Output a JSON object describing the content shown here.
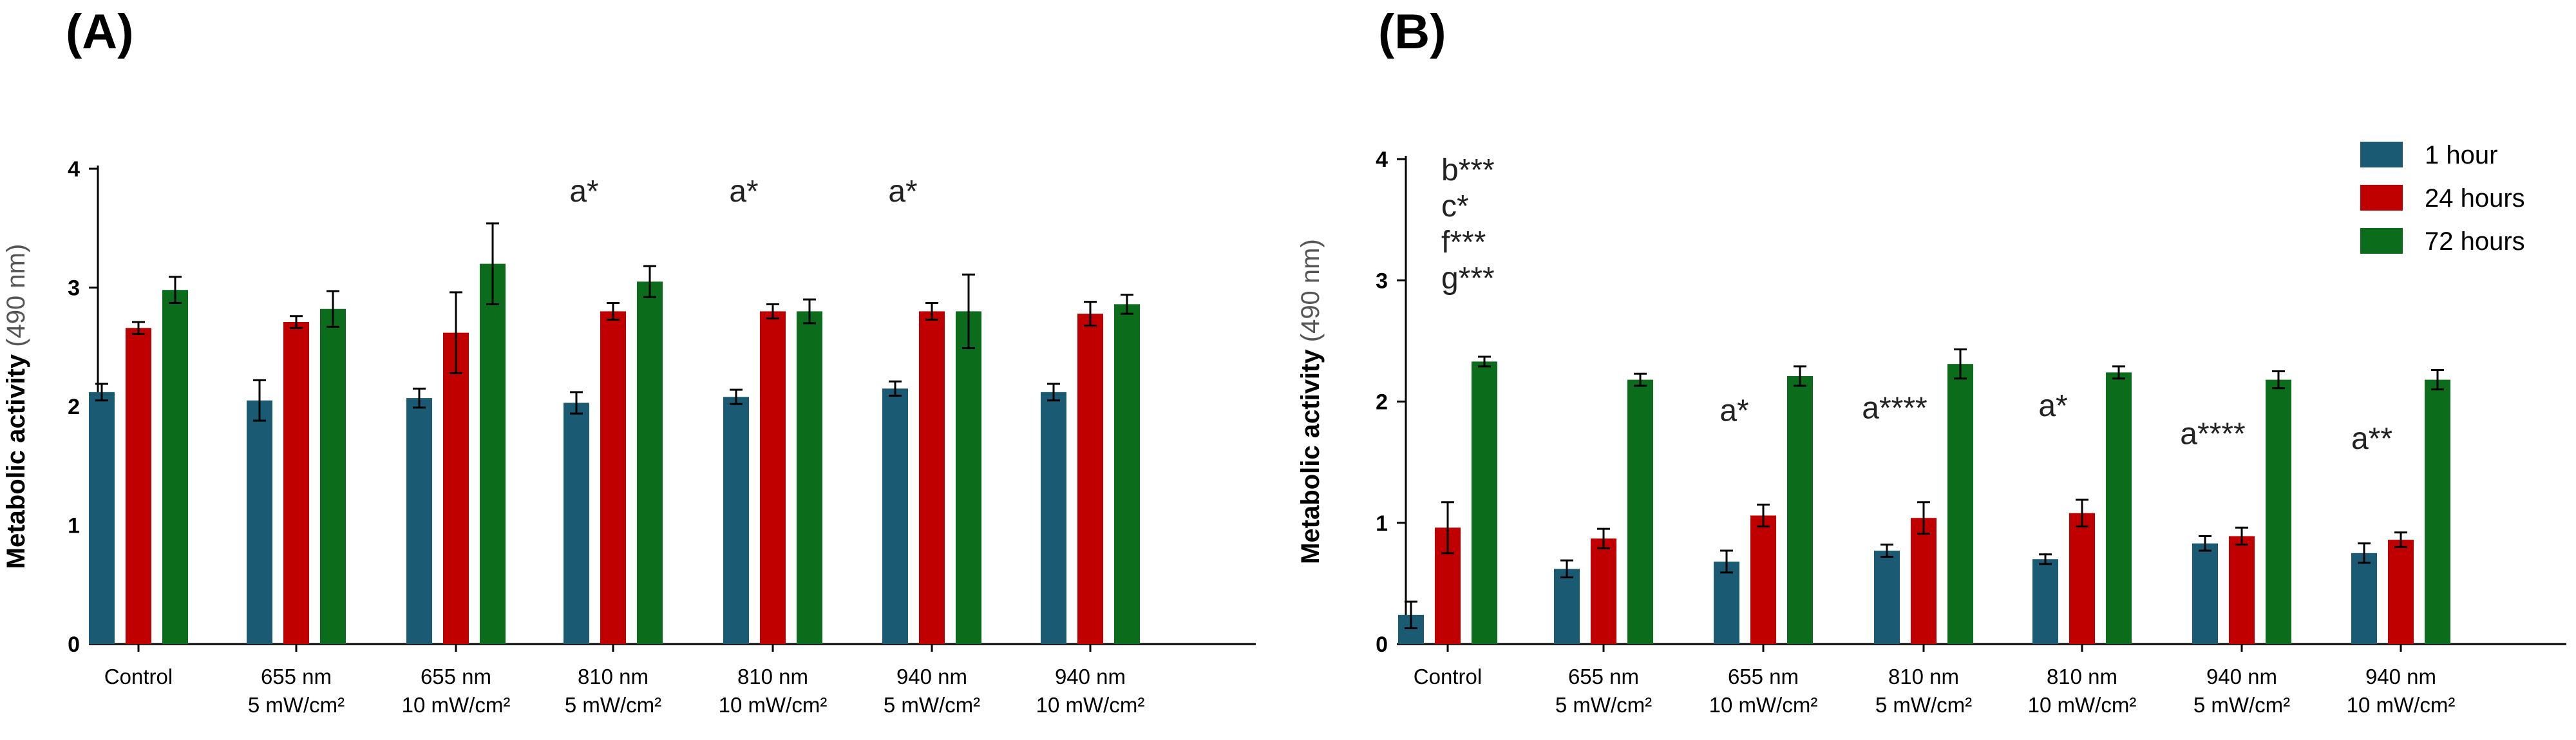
{
  "chart_data": [
    {
      "type": "bar",
      "panel": "(A)",
      "ylabel": "Metabolic activity",
      "ylabel_unit": "(490 nm)",
      "ylim": [
        0,
        4
      ],
      "yticks": [
        "0",
        "1",
        "2",
        "3",
        "4"
      ],
      "categories": [
        [
          "Control"
        ],
        [
          "655 nm",
          "5 mW/cm²"
        ],
        [
          "655 nm",
          "10 mW/cm²"
        ],
        [
          "810 nm",
          "5 mW/cm²"
        ],
        [
          "810 nm",
          "10 mW/cm²"
        ],
        [
          "940 nm",
          "5 mW/cm²"
        ],
        [
          "940 nm",
          "10 mW/cm²"
        ]
      ],
      "series": [
        {
          "color": "#1b5a73",
          "values": [
            2.12,
            2.05,
            2.07,
            2.03,
            2.08,
            2.15,
            2.12
          ],
          "errors": [
            0.07,
            0.17,
            0.08,
            0.09,
            0.06,
            0.06,
            0.07
          ]
        },
        {
          "color": "#c00000",
          "values": [
            2.66,
            2.71,
            2.62,
            2.8,
            2.8,
            2.8,
            2.78
          ],
          "errors": [
            0.05,
            0.05,
            0.34,
            0.07,
            0.06,
            0.07,
            0.1
          ]
        },
        {
          "color": "#0b6d1b",
          "values": [
            2.98,
            2.82,
            3.2,
            3.05,
            2.8,
            2.8,
            2.86
          ],
          "errors": [
            0.11,
            0.15,
            0.34,
            0.13,
            0.1,
            0.31,
            0.08
          ]
        }
      ],
      "annotations": [
        {
          "category": 3,
          "lines": [
            "a*"
          ]
        },
        {
          "category": 4,
          "lines": [
            "a*"
          ]
        },
        {
          "category": 5,
          "lines": [
            "a*"
          ]
        }
      ]
    },
    {
      "type": "bar",
      "panel": "(B)",
      "ylabel": "Metabolic activity",
      "ylabel_unit": "(490 nm)",
      "ylim": [
        0,
        4
      ],
      "yticks": [
        "0",
        "1",
        "2",
        "3",
        "4"
      ],
      "legend_position": "top-right",
      "categories": [
        [
          "Control"
        ],
        [
          "655 nm",
          "5 mW/cm²"
        ],
        [
          "655 nm",
          "10 mW/cm²"
        ],
        [
          "810 nm",
          "5 mW/cm²"
        ],
        [
          "810 nm",
          "10 mW/cm²"
        ],
        [
          "940 nm",
          "5 mW/cm²"
        ],
        [
          "940 nm",
          "10 mW/cm²"
        ]
      ],
      "series": [
        {
          "name": "1 hour",
          "color": "#1b5a73",
          "values": [
            0.24,
            0.62,
            0.68,
            0.77,
            0.7,
            0.83,
            0.75
          ],
          "errors": [
            0.11,
            0.07,
            0.09,
            0.05,
            0.04,
            0.06,
            0.08
          ]
        },
        {
          "name": "24 hours",
          "color": "#c00000",
          "values": [
            0.96,
            0.87,
            1.06,
            1.04,
            1.08,
            0.89,
            0.86
          ],
          "errors": [
            0.21,
            0.08,
            0.09,
            0.13,
            0.11,
            0.07,
            0.06
          ]
        },
        {
          "name": "72 hours",
          "color": "#0b6d1b",
          "values": [
            2.33,
            2.18,
            2.21,
            2.31,
            2.24,
            2.18,
            2.18
          ],
          "errors": [
            0.04,
            0.05,
            0.08,
            0.12,
            0.05,
            0.07,
            0.08
          ]
        }
      ],
      "annotations": [
        {
          "category": 0,
          "lines": [
            "b***",
            "c*",
            "f***",
            "g***"
          ]
        },
        {
          "category": 2,
          "lines": [
            "a*"
          ]
        },
        {
          "category": 3,
          "lines": [
            "a****"
          ]
        },
        {
          "category": 4,
          "lines": [
            "a*"
          ]
        },
        {
          "category": 5,
          "lines": [
            "a****"
          ]
        },
        {
          "category": 6,
          "lines": [
            "a**"
          ]
        }
      ]
    }
  ]
}
